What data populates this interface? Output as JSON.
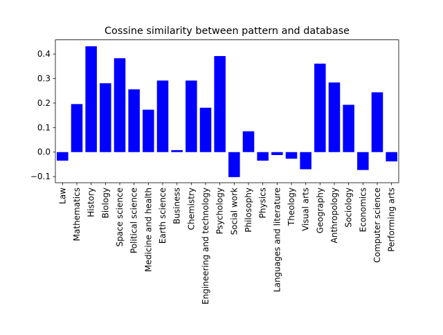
{
  "chart_data": {
    "type": "bar",
    "title": "Cossine similarity between pattern and database",
    "xlabel": "",
    "ylabel": "",
    "categories": [
      "Law",
      "Mathematics",
      "History",
      "Biology",
      "Space science",
      "Political science",
      "Medicine and health",
      "Earth science",
      "Business",
      "Chemistry",
      "Engineering and technology",
      "Psychology",
      "Social work",
      "Philosophy",
      "Physics",
      "Languages and literature",
      "Theology",
      "Visual arts",
      "Geography",
      "Anthropology",
      "Sociology",
      "Economics",
      "Computer science",
      "Performing arts"
    ],
    "values": [
      -0.035,
      0.196,
      0.432,
      0.281,
      0.383,
      0.256,
      0.173,
      0.292,
      0.008,
      0.292,
      0.181,
      0.392,
      -0.102,
      0.085,
      -0.035,
      -0.012,
      -0.027,
      -0.07,
      0.361,
      0.284,
      0.193,
      -0.073,
      0.244,
      -0.038
    ],
    "ylim": [
      -0.125,
      0.458
    ],
    "yticks": [
      -0.1,
      0.0,
      0.1,
      0.2,
      0.3,
      0.4
    ],
    "ytick_labels": [
      "−0.1",
      "0.0",
      "0.1",
      "0.2",
      "0.3",
      "0.4"
    ],
    "bar_color": "#0000ff",
    "grid": false,
    "legend": "none"
  }
}
